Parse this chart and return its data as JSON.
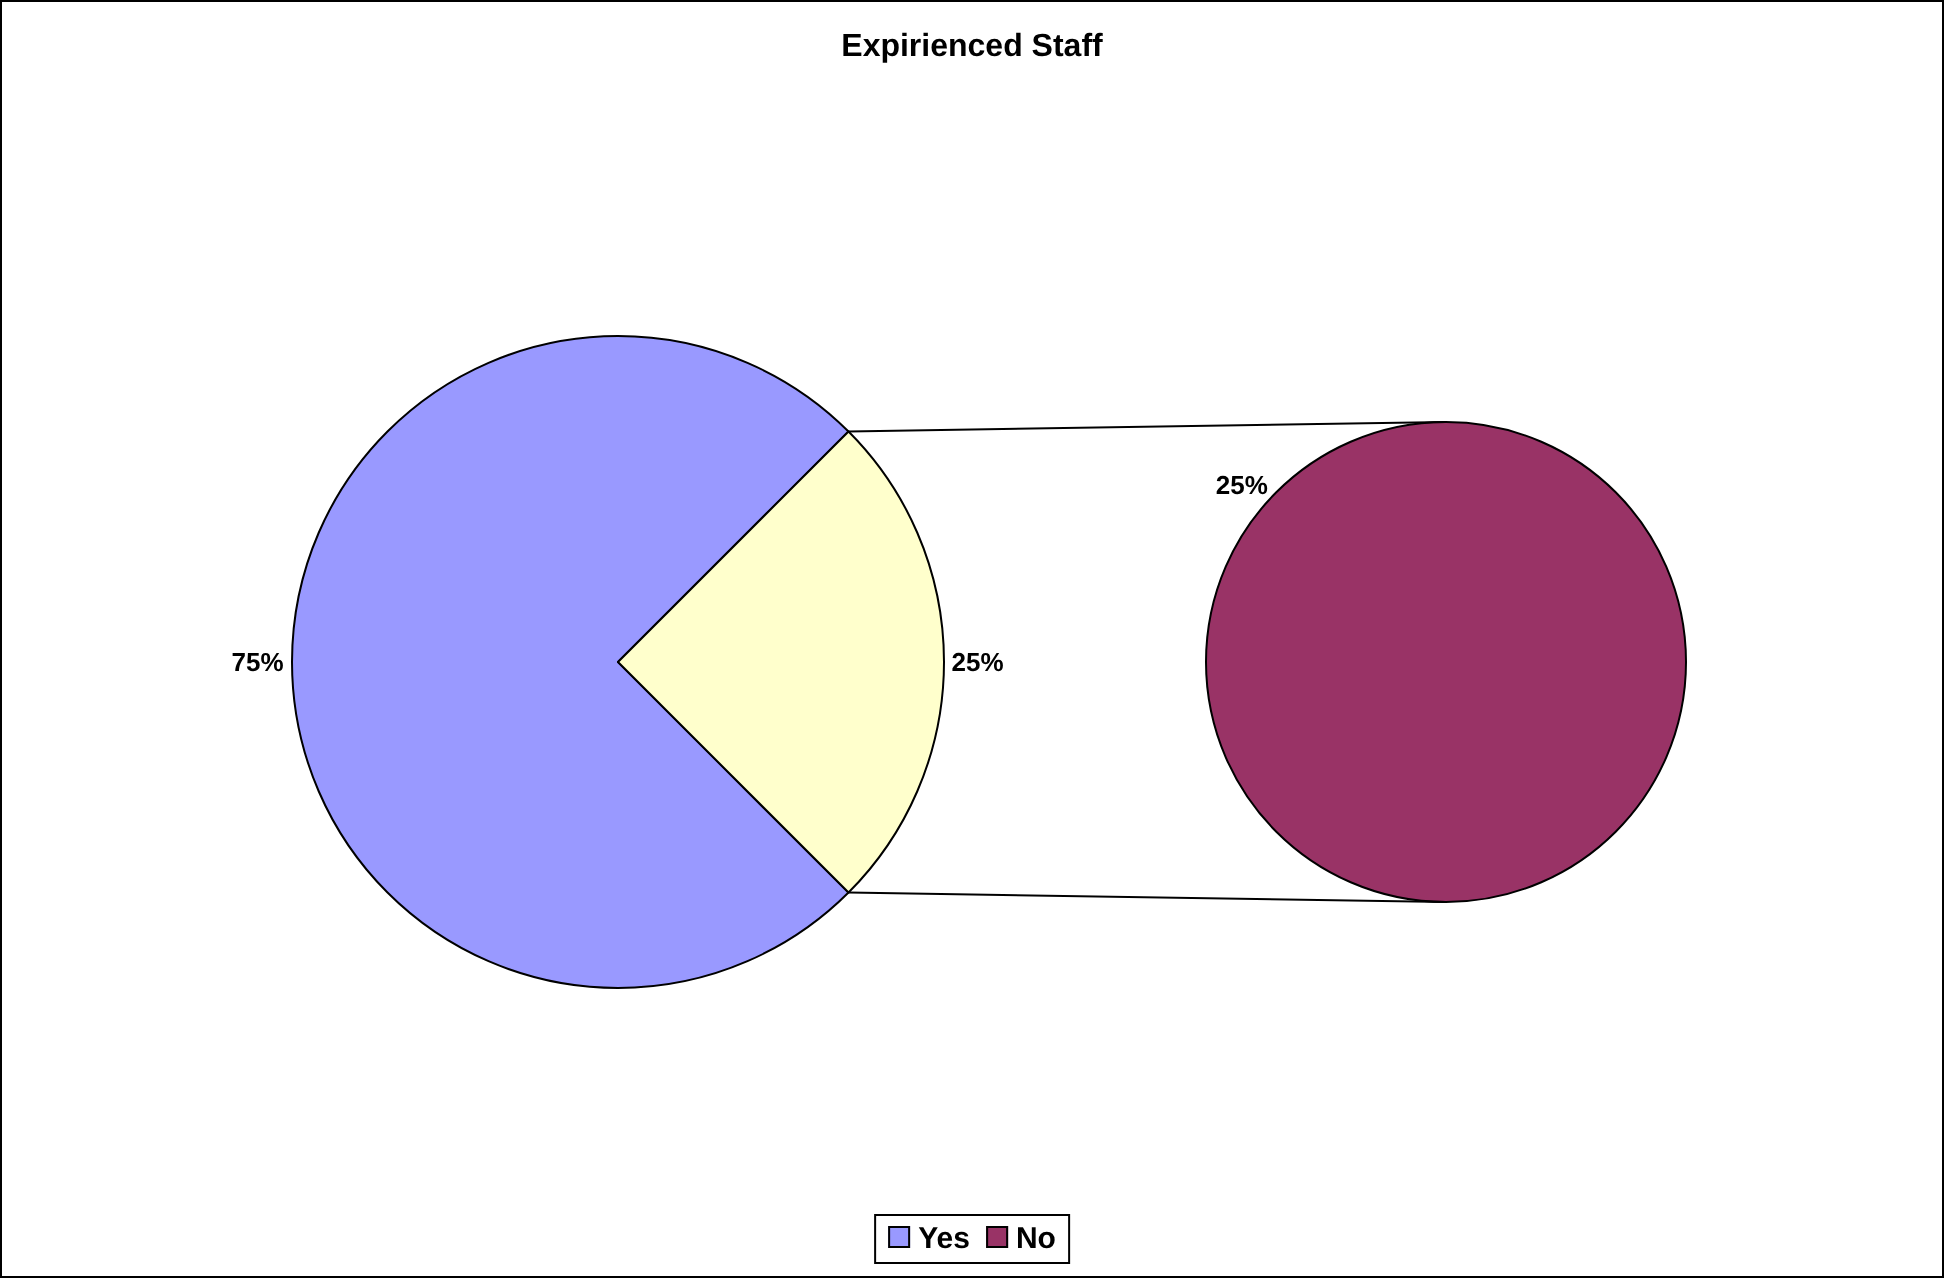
{
  "chart_data": [
    {
      "type": "pie",
      "title": "Expirienced Staff",
      "categories": [
        "Yes",
        null
      ],
      "values": [
        75,
        25
      ],
      "colors": [
        "#9999ff",
        "#ffffcc"
      ],
      "value_labels": [
        "75%",
        "25%"
      ],
      "legend": "bottom"
    },
    {
      "type": "pie",
      "categories": [
        "No"
      ],
      "values": [
        25
      ],
      "colors": [
        "#993366"
      ],
      "value_labels": [
        "25%"
      ]
    }
  ]
}
